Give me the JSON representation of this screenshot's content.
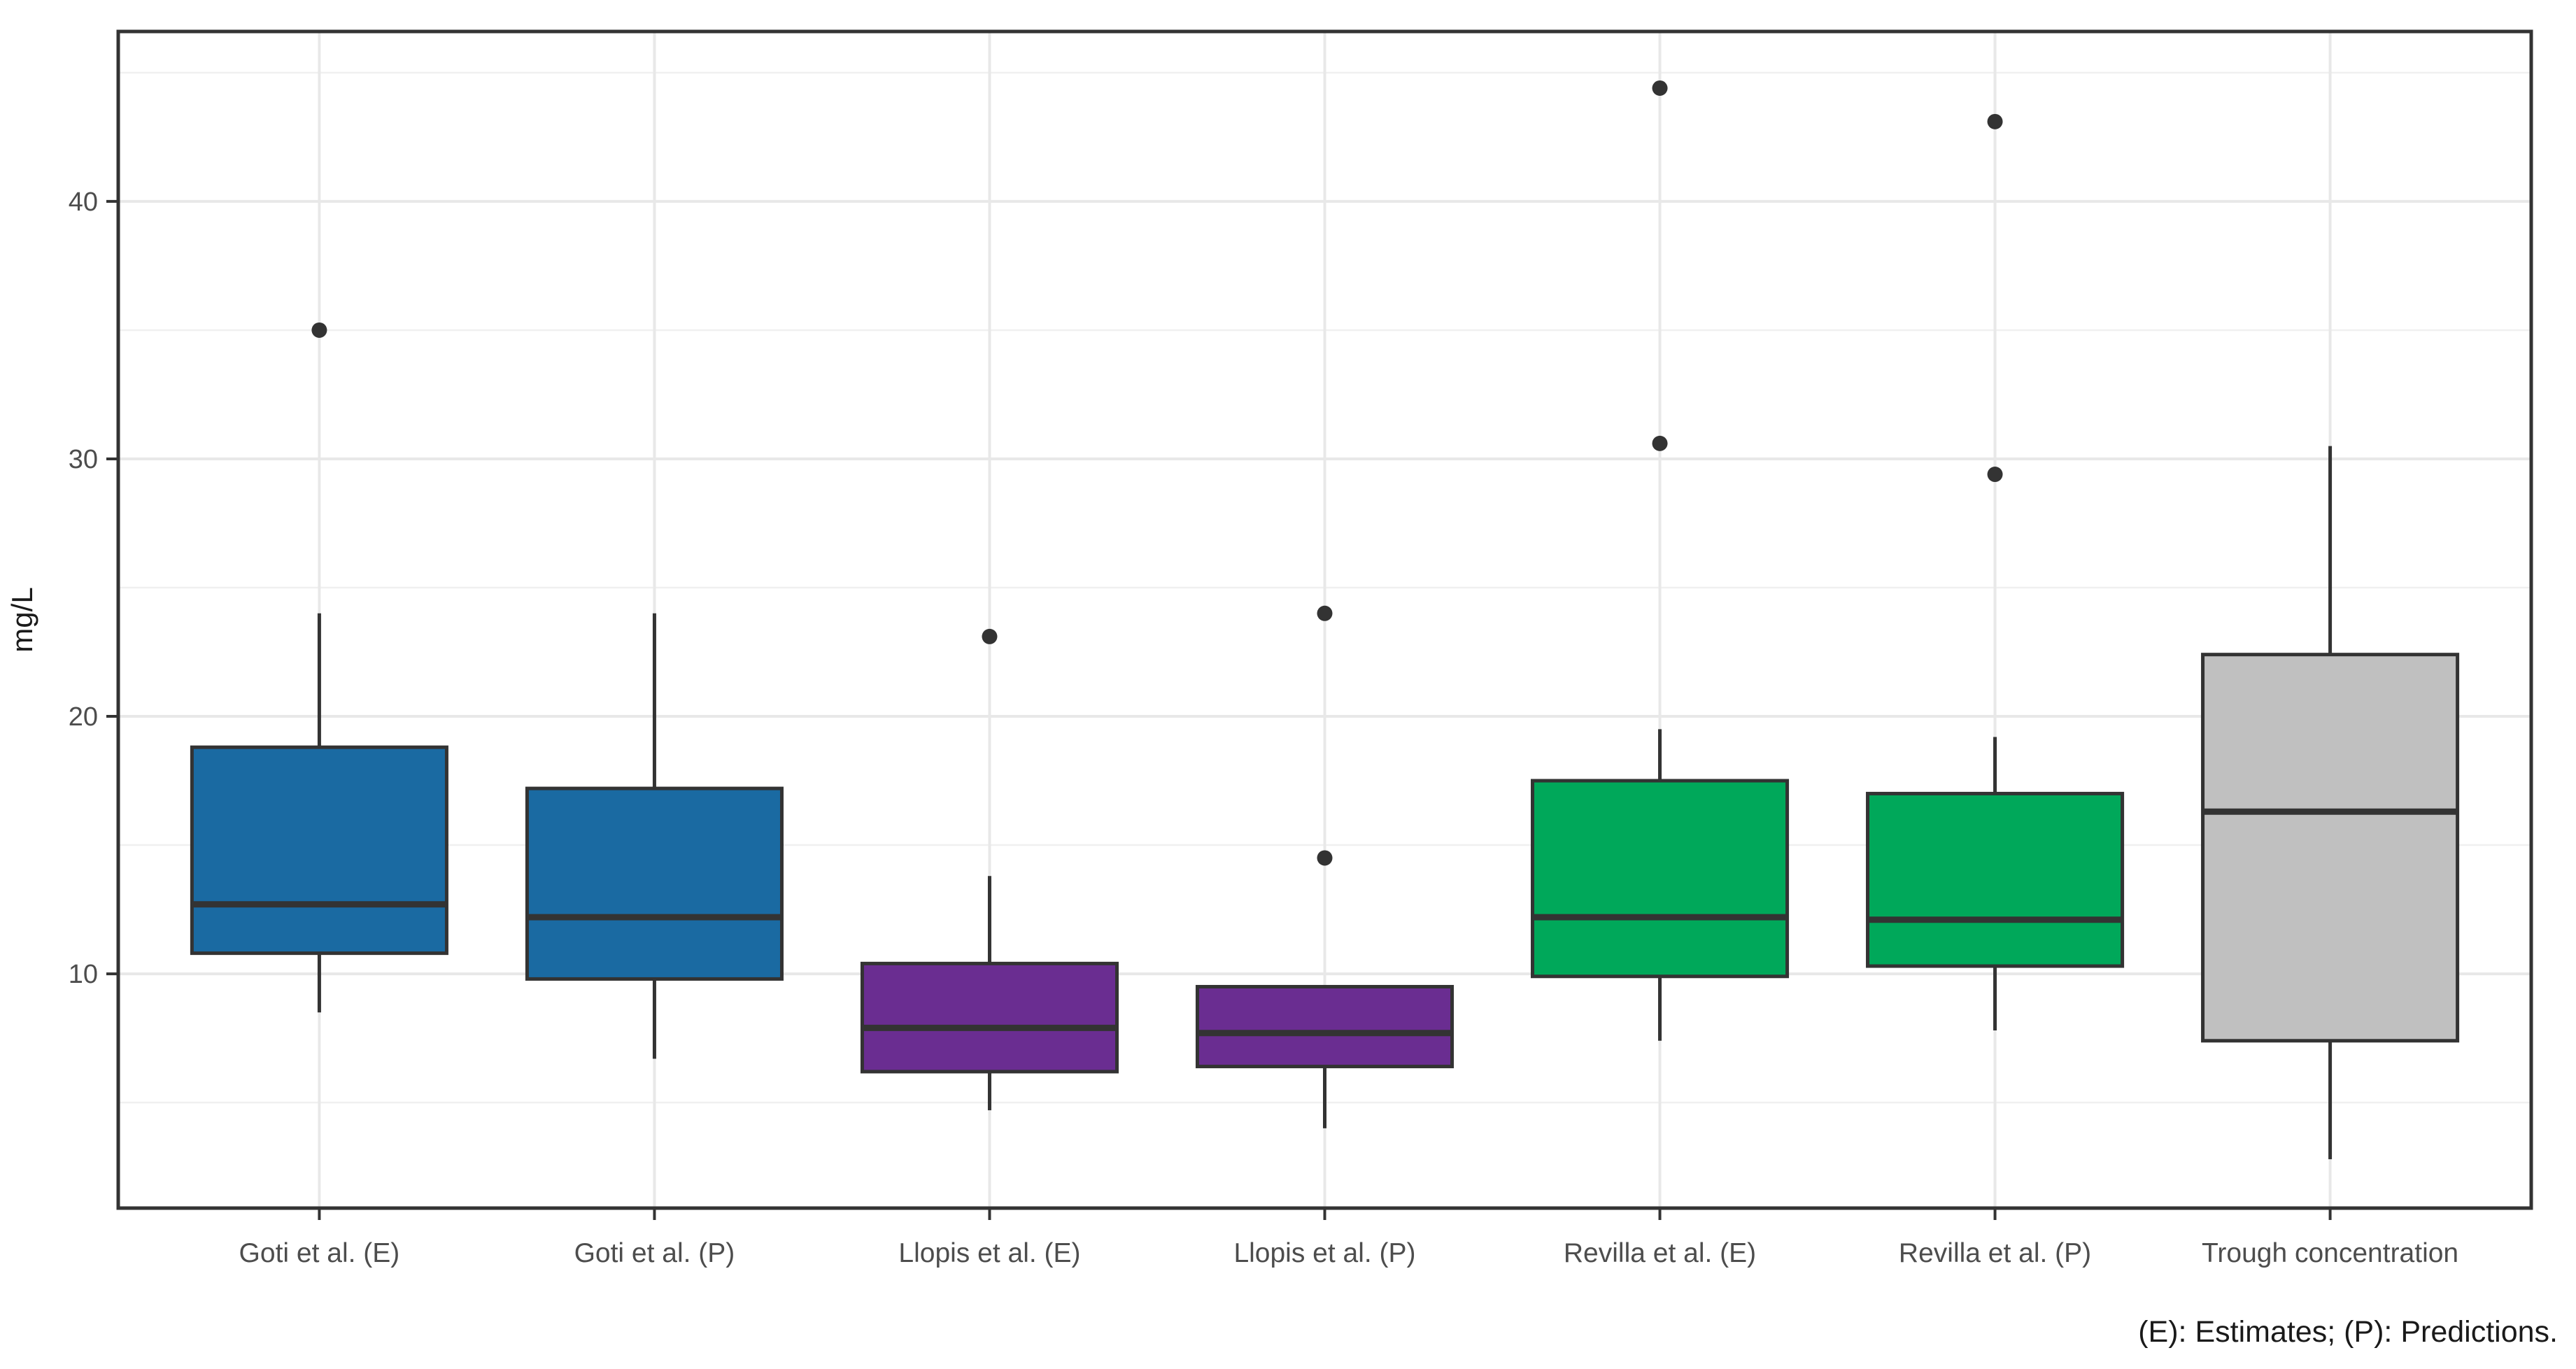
{
  "chart_data": {
    "type": "boxplot",
    "title": "",
    "ylabel": "mg/L",
    "xlabel": "",
    "caption": "(E): Estimates; (P): Predictions.",
    "legend": "none",
    "grid": "horizontal major+minor gridlines; vertical major gridline at each category",
    "ylim": [
      0.9,
      46.6
    ],
    "yticks_major": [
      10,
      20,
      30,
      40
    ],
    "yticks_minor": [
      5,
      15,
      25,
      35,
      45
    ],
    "categories": [
      "Goti et al. (E)",
      "Goti et al. (P)",
      "Llopis et al. (E)",
      "Llopis et al. (P)",
      "Revilla et al. (E)",
      "Revilla et al. (P)",
      "Trough concentration"
    ],
    "series": [
      {
        "label": "Goti et al. (E)",
        "fill": "blue",
        "whisker_low": 8.5,
        "q1": 10.8,
        "median": 12.7,
        "q3": 18.8,
        "whisker_high": 24.0,
        "outliers": [
          35.0
        ]
      },
      {
        "label": "Goti et al. (P)",
        "fill": "blue",
        "whisker_low": 6.7,
        "q1": 9.8,
        "median": 12.2,
        "q3": 17.2,
        "whisker_high": 24.0,
        "outliers": []
      },
      {
        "label": "Llopis et al. (E)",
        "fill": "purple",
        "whisker_low": 4.7,
        "q1": 6.2,
        "median": 7.9,
        "q3": 10.4,
        "whisker_high": 13.8,
        "outliers": [
          23.1
        ]
      },
      {
        "label": "Llopis et al. (P)",
        "fill": "purple",
        "whisker_low": 4.0,
        "q1": 6.4,
        "median": 7.7,
        "q3": 9.5,
        "whisker_high": 9.5,
        "outliers": [
          24.0,
          14.5
        ]
      },
      {
        "label": "Revilla et al. (E)",
        "fill": "green",
        "whisker_low": 7.4,
        "q1": 9.9,
        "median": 12.2,
        "q3": 17.5,
        "whisker_high": 19.5,
        "outliers": [
          44.4,
          30.6
        ]
      },
      {
        "label": "Revilla et al. (P)",
        "fill": "green",
        "whisker_low": 7.8,
        "q1": 10.3,
        "median": 12.1,
        "q3": 17.0,
        "whisker_high": 19.2,
        "outliers": [
          43.1,
          29.4
        ]
      },
      {
        "label": "Trough concentration",
        "fill": "gray",
        "whisker_low": 2.8,
        "q1": 7.4,
        "median": 16.3,
        "q3": 22.4,
        "whisker_high": 30.5,
        "outliers": []
      }
    ],
    "colors": {
      "blue": "#1A6AA2",
      "purple": "#6A2D91",
      "green": "#00A85A",
      "gray": "#C0C0C0",
      "stroke": "#333333",
      "outlier_dot": "#333333",
      "grid_major": "#E8E8E8",
      "grid_minor": "#F0F0F0",
      "panel_border": "#333333",
      "tick_text": "#4D4D4D",
      "title_text": "#1A1A1A",
      "background": "#FFFFFF"
    }
  }
}
